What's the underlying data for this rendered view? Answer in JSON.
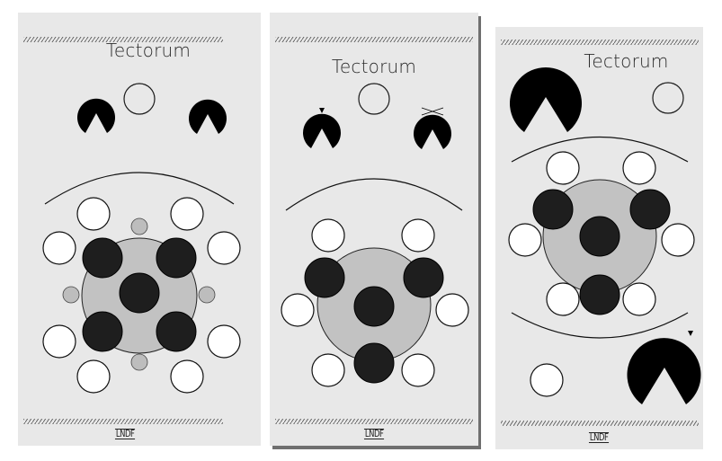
{
  "panels": [
    {
      "title": "Tectorum",
      "brand": "LNDF"
    },
    {
      "title": "Tectorum",
      "brand": "LNDF"
    },
    {
      "title": "Tectorum",
      "brand": "LNDF"
    }
  ],
  "colors": {
    "panel": "#e8e8e8",
    "dark_knob": "#1e1e1e",
    "wedge": "#000000",
    "core": "#c2c2c2",
    "small_dot": "#bdbdbd",
    "jack_fill": "#ffffff",
    "hatch": "#555555"
  }
}
